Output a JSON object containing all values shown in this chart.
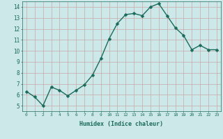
{
  "x": [
    0,
    1,
    2,
    3,
    4,
    5,
    6,
    7,
    8,
    9,
    10,
    11,
    12,
    13,
    14,
    15,
    16,
    17,
    18,
    19,
    20,
    21,
    22,
    23
  ],
  "y": [
    6.3,
    5.8,
    5.0,
    6.7,
    6.4,
    5.9,
    6.4,
    6.9,
    7.8,
    9.3,
    11.1,
    12.5,
    13.3,
    13.4,
    13.2,
    14.0,
    14.3,
    13.2,
    12.1,
    11.4,
    10.1,
    10.5,
    10.1,
    10.1
  ],
  "xlabel": "Humidex (Indice chaleur)",
  "ylabel": "",
  "xlim": [
    -0.5,
    23.5
  ],
  "ylim": [
    4.5,
    14.5
  ],
  "yticks": [
    5,
    6,
    7,
    8,
    9,
    10,
    11,
    12,
    13,
    14
  ],
  "xticks": [
    0,
    1,
    2,
    3,
    4,
    5,
    6,
    7,
    8,
    9,
    10,
    11,
    12,
    13,
    14,
    15,
    16,
    17,
    18,
    19,
    20,
    21,
    22,
    23
  ],
  "line_color": "#1a6b5a",
  "marker_color": "#1a6b5a",
  "bg_color": "#cce8e8",
  "grid_color": "#c8a8a8",
  "label_color": "#1a6b5a",
  "tick_color": "#1a6b5a",
  "linewidth": 1.0,
  "markersize": 2.5
}
